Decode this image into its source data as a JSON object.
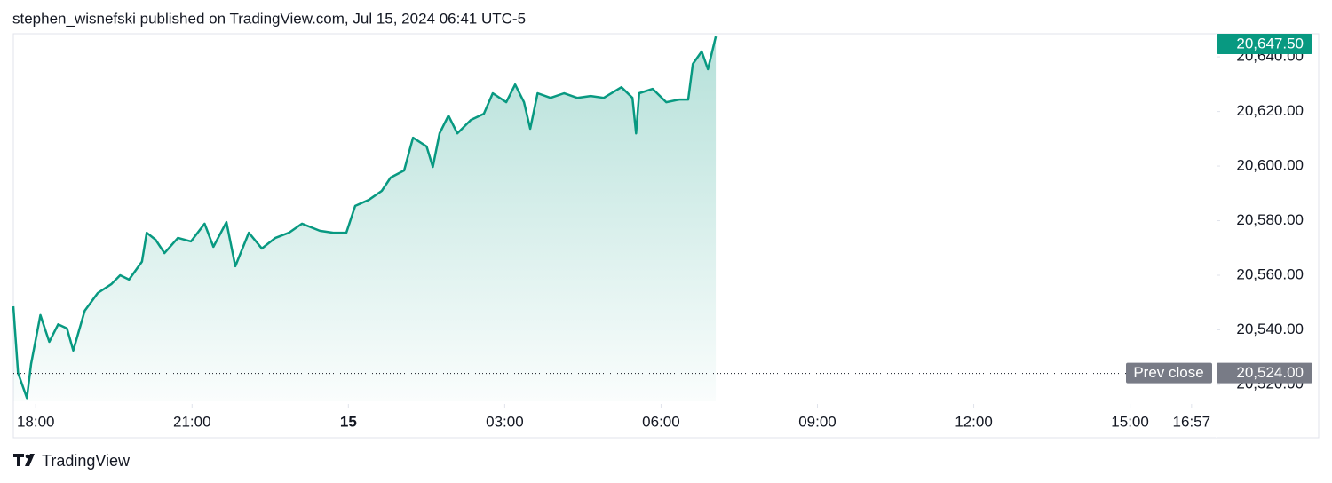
{
  "chart_data": {
    "type": "area",
    "title": "stephen_wisnefski published on TradingView.com, Jul 15, 2024 06:41 UTC-5",
    "footer": "TradingView",
    "color": "#089981",
    "x": [
      -0.43,
      -0.34,
      -0.17,
      -0.09,
      0.09,
      0.26,
      0.43,
      0.6,
      0.72,
      0.94,
      1.19,
      1.45,
      1.62,
      1.79,
      2.04,
      2.13,
      2.3,
      2.47,
      2.73,
      2.98,
      3.24,
      3.41,
      3.66,
      3.83,
      4.09,
      4.34,
      4.6,
      4.86,
      5.11,
      5.45,
      5.71,
      5.96,
      6.13,
      6.39,
      6.64,
      6.81,
      7.07,
      7.24,
      7.5,
      7.62,
      7.75,
      7.92,
      8.09,
      8.35,
      8.6,
      8.77,
      9.03,
      9.2,
      9.37,
      9.49,
      9.63,
      9.88,
      10.14,
      10.39,
      10.65,
      10.9,
      11.24,
      11.45,
      11.52,
      11.58,
      11.84,
      12.1,
      12.35,
      12.52,
      12.61,
      12.78,
      12.9,
      13.05
    ],
    "values": [
      20548.6,
      20524.2,
      20515,
      20527.5,
      20545.4,
      20535.6,
      20542,
      20540.5,
      20532.4,
      20547,
      20553.5,
      20556.7,
      20560,
      20558.4,
      20565,
      20575.6,
      20573,
      20568.1,
      20573.7,
      20572.4,
      20578.9,
      20570.4,
      20579.5,
      20563.3,
      20575.6,
      20569.8,
      20573.7,
      20575.6,
      20578.9,
      20576.3,
      20575.6,
      20575.6,
      20585.4,
      20587.6,
      20590.9,
      20595.8,
      20598.4,
      20610.4,
      20607.2,
      20599.7,
      20612,
      20618.5,
      20612,
      20616.9,
      20619.2,
      20626.7,
      20623.4,
      20629.9,
      20623.4,
      20613.7,
      20626.7,
      20625,
      20626.7,
      20625,
      20625.7,
      20625,
      20628.9,
      20625,
      20612,
      20626.7,
      20628.3,
      20623.4,
      20624.4,
      20624.4,
      20637.4,
      20642,
      20635.5,
      20647.5
    ],
    "xlim": [
      -0.43,
      22.66
    ],
    "xticks": [
      {
        "value": 0,
        "label": "18:00"
      },
      {
        "value": 3,
        "label": "21:00"
      },
      {
        "value": 6,
        "label": "15",
        "bold": true
      },
      {
        "value": 9,
        "label": "03:00"
      },
      {
        "value": 12,
        "label": "06:00"
      },
      {
        "value": 15,
        "label": "09:00"
      },
      {
        "value": 18,
        "label": "12:00"
      },
      {
        "value": 21,
        "label": "15:00"
      },
      {
        "value": 22.18,
        "label": "16:57"
      }
    ],
    "ylim": [
      20513.8,
      20648.5
    ],
    "yticks": [
      {
        "value": 20520,
        "label": "20,520.00"
      },
      {
        "value": 20540,
        "label": "20,540.00"
      },
      {
        "value": 20560,
        "label": "20,560.00"
      },
      {
        "value": 20580,
        "label": "20,580.00"
      },
      {
        "value": 20600,
        "label": "20,600.00"
      },
      {
        "value": 20620,
        "label": "20,620.00"
      },
      {
        "value": 20640,
        "label": "20,640.00"
      }
    ],
    "prev_close": {
      "name": "Prev close",
      "value": 20524,
      "label": "20,524.00"
    },
    "last_price": {
      "value": 20647.5,
      "label": "20,647.50"
    }
  }
}
